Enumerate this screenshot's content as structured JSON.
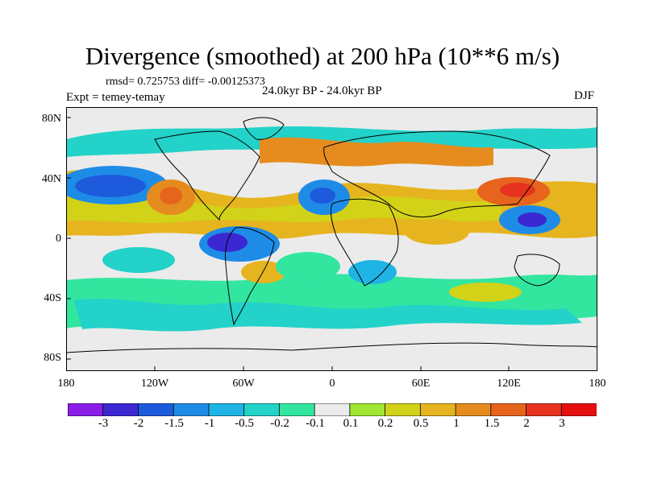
{
  "title": "Divergence (smoothed) at 200 hPa (10**6 m/s)",
  "stats": "rmsd= 0.725753 diff= -0.00125373",
  "period": "24.0kyr BP - 24.0kyr BP",
  "experiment": "Expt = temey-temay",
  "season": "DJF",
  "axes": {
    "lat_ticks": [
      "80N",
      "40N",
      "0",
      "40S",
      "80S"
    ],
    "lon_ticks": [
      "180",
      "120W",
      "60W",
      "0",
      "60E",
      "120E",
      "180"
    ]
  },
  "colorbar": {
    "tick_labels": [
      "-3",
      "-2",
      "-1.5",
      "-1",
      "-0.5",
      "-0.2",
      "-0.1",
      "0.1",
      "0.2",
      "0.5",
      "1",
      "1.5",
      "2",
      "3"
    ],
    "colors": [
      "#8a1ee6",
      "#3c28d2",
      "#1e5adc",
      "#1e8ce6",
      "#1eb4e6",
      "#23d2c8",
      "#32e6a0",
      "#ebebeb",
      "#a0e632",
      "#d2d219",
      "#e6b41e",
      "#e68c1e",
      "#e6641e",
      "#e6321e",
      "#e60f0f"
    ]
  },
  "map": {
    "background_color": "#ebebeb",
    "features": [
      {
        "name": "n-pacific-negative",
        "color": "#1e5adc"
      },
      {
        "name": "n-atlantic-negative",
        "color": "#1e8ce6"
      },
      {
        "name": "amazon-negative",
        "color": "#3c28d2"
      },
      {
        "name": "maritime-continent-negative",
        "color": "#3c28d2"
      },
      {
        "name": "japan-positive",
        "color": "#e6321e"
      },
      {
        "name": "c-pacific-positive",
        "color": "#e6641e"
      },
      {
        "name": "atlantic-positive",
        "color": "#e68c1e"
      }
    ]
  }
}
